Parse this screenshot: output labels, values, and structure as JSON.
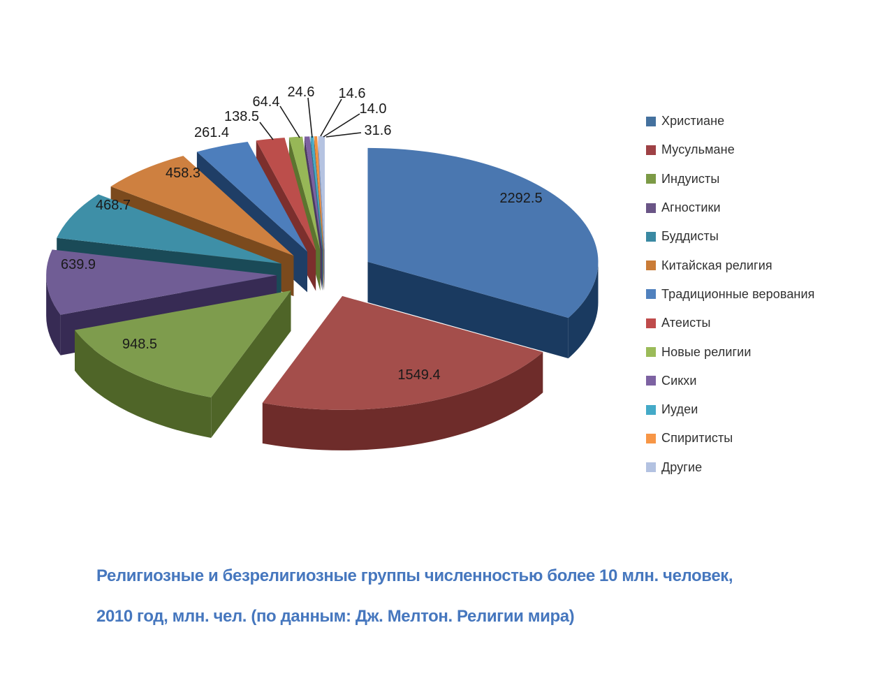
{
  "page": {
    "background": "#FFFFFF"
  },
  "chart_data": {
    "type": "pie",
    "pie_style": "3d-exploded",
    "legend_position": "right",
    "title_line1": "Религиозные и безрелигиозные группы численностью более 10 млн. человек,",
    "title_line2": "2010 год, млн. чел. (по данным: Дж. Мелтон. Религии мира)",
    "title_color": "#4677BE",
    "label_color": "#1A1A1A",
    "legend_text_color": "#303030",
    "series": [
      {
        "label": "Христиане",
        "value": 2292.5,
        "label_text": "2292.5",
        "color": "#4A77B0",
        "side": "#1A3A60",
        "legend_color": "#44719E"
      },
      {
        "label": "Мусульмане",
        "value": 1549.4,
        "label_text": "1549.4",
        "color": "#A44E4B",
        "side": "#6E2C2A",
        "legend_color": "#9E4145"
      },
      {
        "label": "Индуисты",
        "value": 948.5,
        "label_text": "948.5",
        "color": "#7E9C4D",
        "side": "#4F6528",
        "legend_color": "#7C9A46"
      },
      {
        "label": "Агностики",
        "value": 639.9,
        "label_text": "639.9",
        "color": "#705D95",
        "side": "#372B54",
        "legend_color": "#6A5586"
      },
      {
        "label": "Буддисты",
        "value": 468.7,
        "label_text": "468.7",
        "color": "#3E8FA7",
        "side": "#1A4A57",
        "legend_color": "#3A89A2"
      },
      {
        "label": "Китайская религия",
        "value": 458.3,
        "label_text": "458.3",
        "color": "#CE8040",
        "side": "#7B4A1D",
        "legend_color": "#CA7C37"
      },
      {
        "label": "Традиционные верования",
        "value": 261.4,
        "label_text": "261.4",
        "color": "#4D7EBC",
        "side": "#1F3E66",
        "legend_color": "#5081BE"
      },
      {
        "label": "Атеисты",
        "value": 138.5,
        "label_text": "138.5",
        "color": "#BC4E4B",
        "side": "#7C2F2D",
        "legend_color": "#BF4B4B"
      },
      {
        "label": "Новые религии",
        "value": 64.4,
        "label_text": "64.4",
        "color": "#97B757",
        "side": "#5C742F",
        "legend_color": "#9BBB59"
      },
      {
        "label": "Сикхи",
        "value": 24.6,
        "label_text": "24.6",
        "color": "#7C61A0",
        "side": "#4A3961",
        "legend_color": "#7D62A2"
      },
      {
        "label": "Иудеи",
        "value": 14.6,
        "label_text": "14.6",
        "color": "#48A9C5",
        "side": "#27708B",
        "legend_color": "#44AAC8"
      },
      {
        "label": "Спиритисты",
        "value": 14.0,
        "label_text": "14.0",
        "color": "#F0913F",
        "side": "#AE6220",
        "legend_color": "#F79646"
      },
      {
        "label": "Другие",
        "value": 31.6,
        "label_text": "31.6",
        "color": "#B5C3E1",
        "side": "#8195BB",
        "legend_color": "#B3C2E1"
      }
    ]
  }
}
